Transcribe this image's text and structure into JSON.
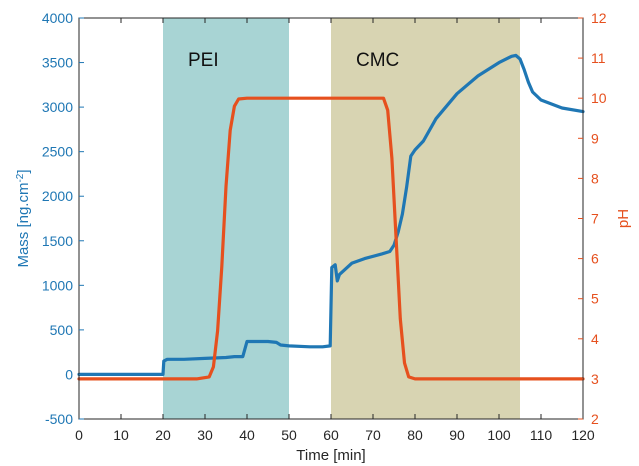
{
  "chart_data": {
    "type": "line",
    "xlabel": "Time [min]",
    "ylabel_left_main": "Mass [ng.cm",
    "ylabel_left_sup": "-2",
    "ylabel_left_end": "]",
    "ylabel_right": "pH",
    "xlim": [
      0,
      120
    ],
    "ylim_left": [
      -500,
      4000
    ],
    "ylim_right": [
      2,
      12
    ],
    "x_ticks": [
      0,
      10,
      20,
      30,
      40,
      50,
      60,
      70,
      80,
      90,
      100,
      110,
      120
    ],
    "y_left_ticks": [
      -500,
      0,
      500,
      1000,
      1500,
      2000,
      2500,
      3000,
      3500,
      4000
    ],
    "y_right_ticks": [
      2,
      3,
      4,
      5,
      6,
      7,
      8,
      9,
      10,
      11,
      12
    ],
    "grid": false,
    "regions": [
      {
        "label": "PEI",
        "x_start": 20,
        "x_end": 50,
        "color": "#a8d4d4"
      },
      {
        "label": "CMC",
        "x_start": 60,
        "x_end": 105,
        "color": "#d8d4b2"
      }
    ],
    "series": [
      {
        "axis": "left",
        "color": "#1f77b4",
        "points": [
          [
            0,
            0
          ],
          [
            20,
            0
          ],
          [
            20.2,
            150
          ],
          [
            21,
            170
          ],
          [
            25,
            170
          ],
          [
            30,
            180
          ],
          [
            35,
            190
          ],
          [
            37,
            200
          ],
          [
            39,
            200
          ],
          [
            40,
            370
          ],
          [
            45,
            370
          ],
          [
            47,
            360
          ],
          [
            48,
            330
          ],
          [
            50,
            320
          ],
          [
            55,
            310
          ],
          [
            58,
            310
          ],
          [
            59.8,
            320
          ],
          [
            60.2,
            1200
          ],
          [
            61,
            1230
          ],
          [
            61.5,
            1050
          ],
          [
            62,
            1120
          ],
          [
            65,
            1250
          ],
          [
            68,
            1300
          ],
          [
            72,
            1350
          ],
          [
            74,
            1380
          ],
          [
            75,
            1450
          ],
          [
            76,
            1600
          ],
          [
            77,
            1800
          ],
          [
            78,
            2100
          ],
          [
            79,
            2450
          ],
          [
            80,
            2520
          ],
          [
            82,
            2620
          ],
          [
            85,
            2870
          ],
          [
            90,
            3150
          ],
          [
            95,
            3350
          ],
          [
            100,
            3500
          ],
          [
            103,
            3570
          ],
          [
            104,
            3580
          ],
          [
            105,
            3540
          ],
          [
            106,
            3420
          ],
          [
            107,
            3280
          ],
          [
            108,
            3170
          ],
          [
            110,
            3080
          ],
          [
            115,
            2990
          ],
          [
            120,
            2950
          ]
        ]
      },
      {
        "axis": "right",
        "color": "#e6501e",
        "points": [
          [
            0,
            3
          ],
          [
            28,
            3
          ],
          [
            31,
            3.05
          ],
          [
            32,
            3.3
          ],
          [
            33,
            4.2
          ],
          [
            34,
            5.8
          ],
          [
            35,
            7.8
          ],
          [
            36,
            9.2
          ],
          [
            37,
            9.8
          ],
          [
            38,
            9.98
          ],
          [
            40,
            10
          ],
          [
            50,
            10
          ],
          [
            60,
            10
          ],
          [
            70,
            10
          ],
          [
            72.5,
            10
          ],
          [
            73.5,
            9.7
          ],
          [
            74.5,
            8.5
          ],
          [
            75.5,
            6.5
          ],
          [
            76.5,
            4.5
          ],
          [
            77.5,
            3.4
          ],
          [
            78.5,
            3.05
          ],
          [
            80,
            3
          ],
          [
            100,
            3
          ],
          [
            120,
            3
          ]
        ]
      }
    ]
  }
}
